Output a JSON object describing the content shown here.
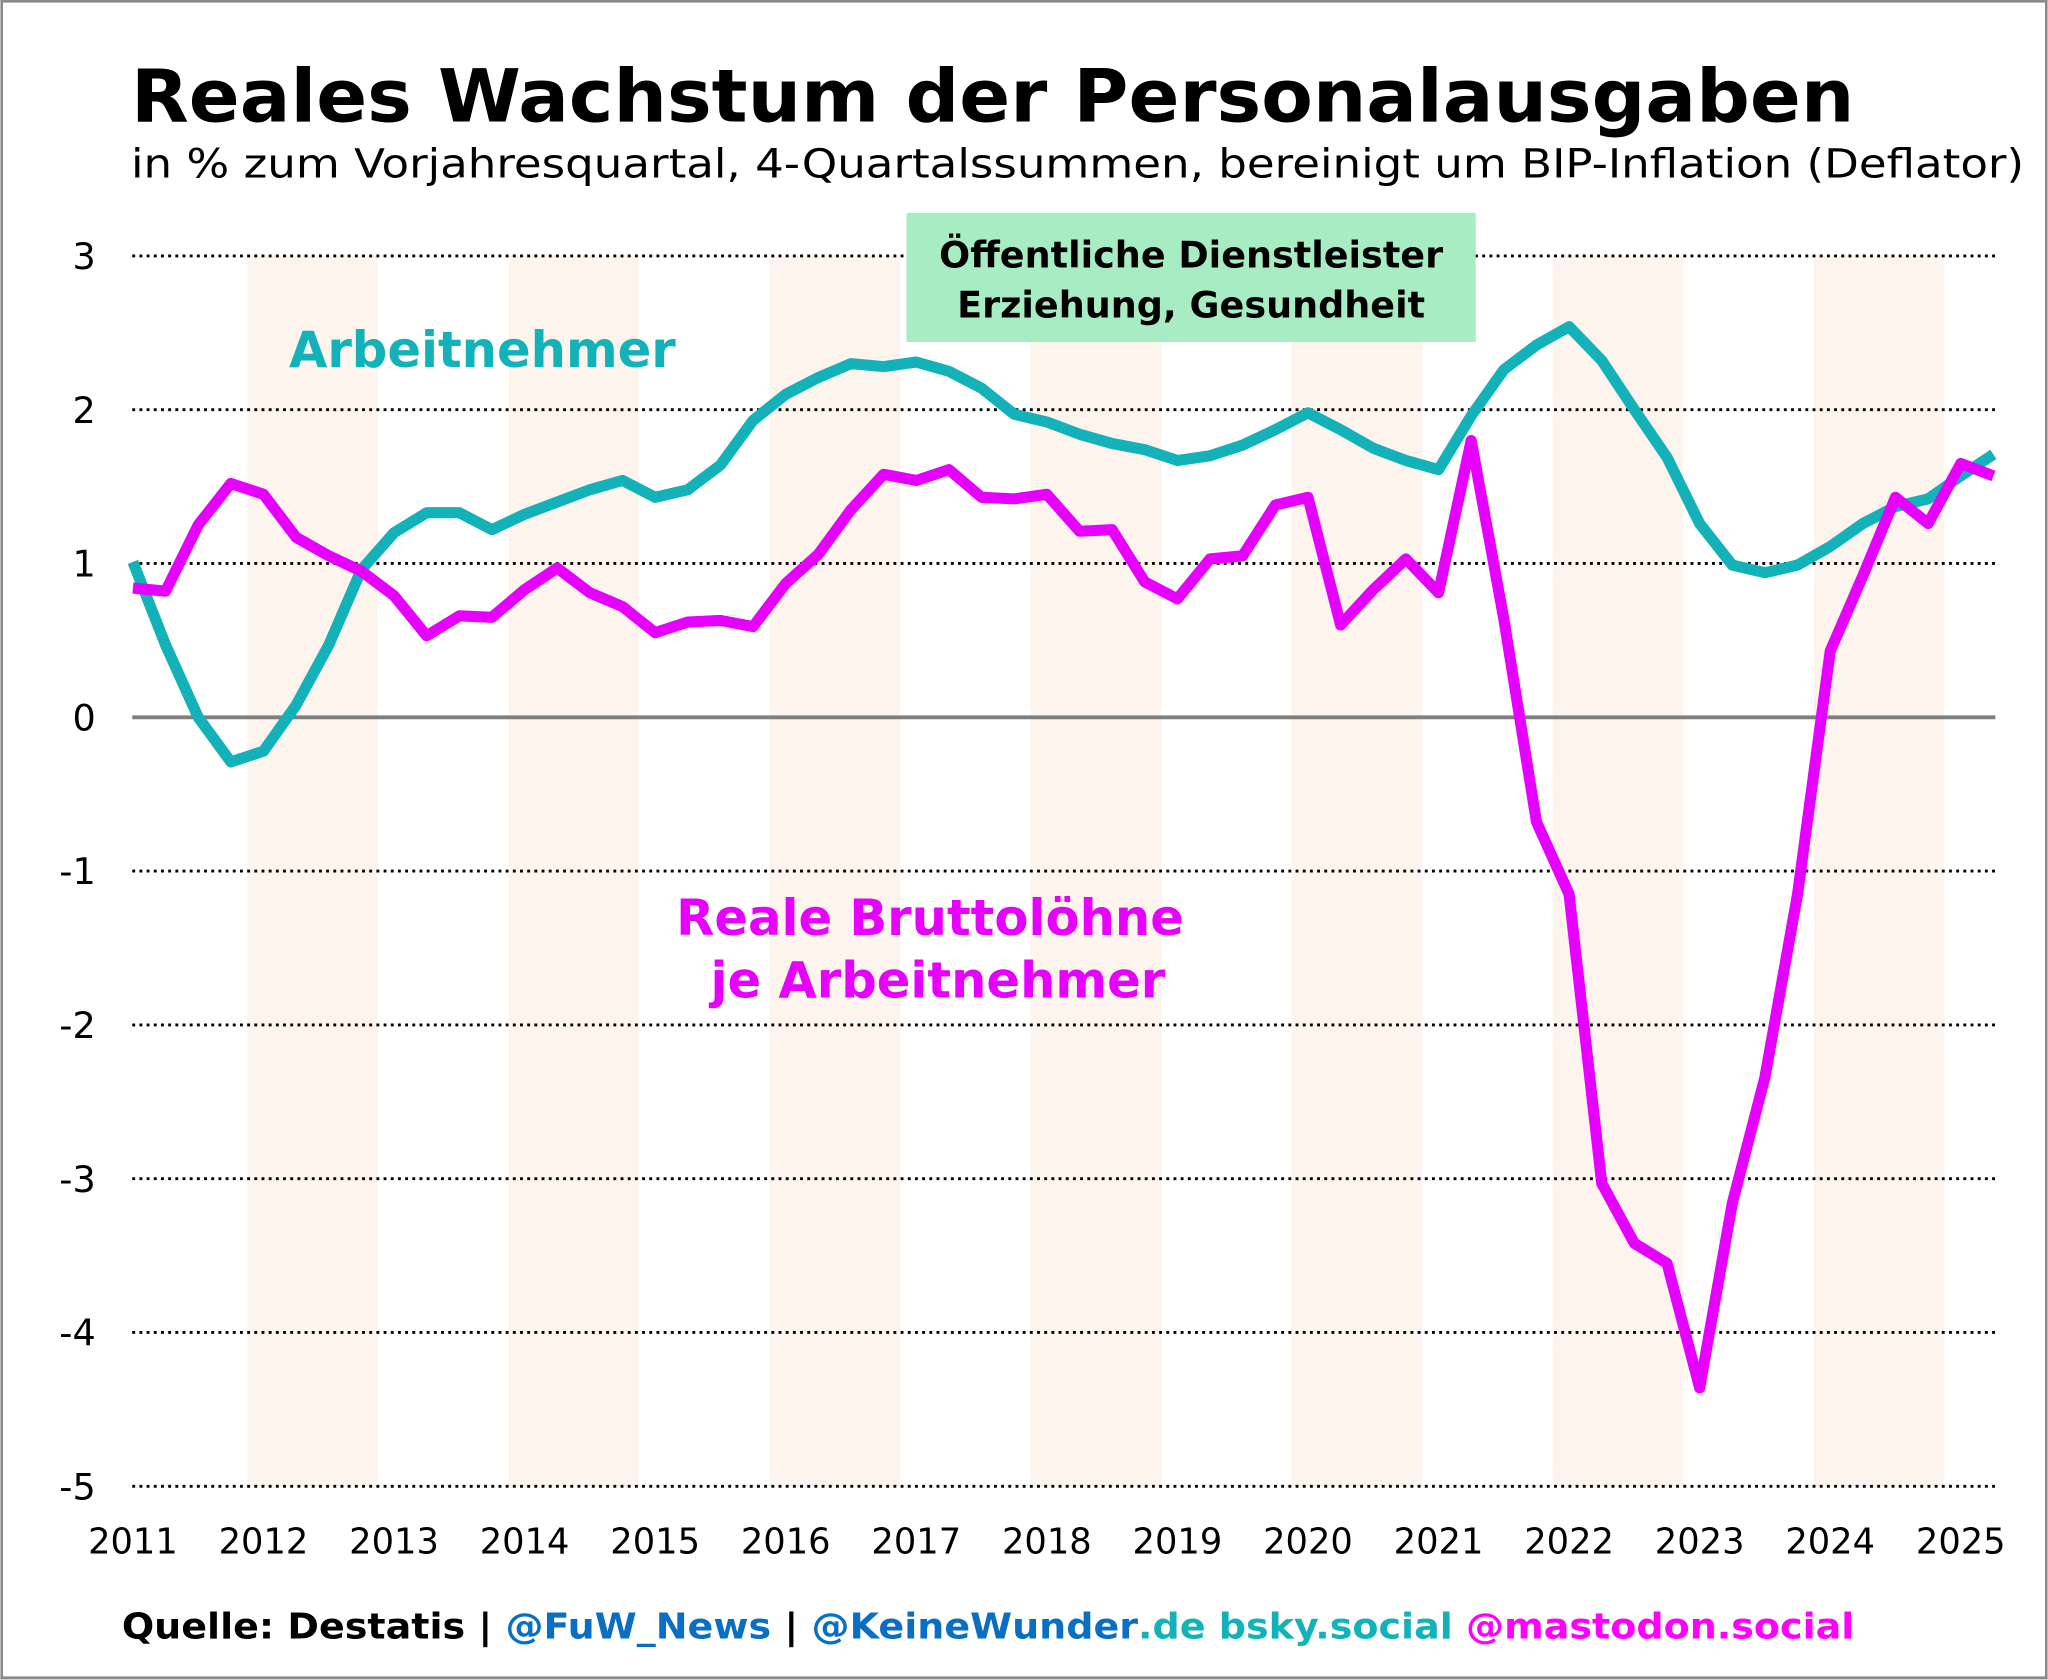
{
  "title": "Reales Wachstum der Personalausgaben",
  "subtitle": "in % zum Vorjahresquartal, 4-Quartalssummen, bereinigt um BIP-Inflation (Deflator)",
  "annotation_box": {
    "line1": "Öffentliche Dienstleister",
    "line2": "Erziehung, Gesundheit",
    "color": "#a8ecc4"
  },
  "footer": {
    "source": "Quelle: Destatis | ",
    "fuw": "@FuW_News",
    "sep": " | ",
    "keinewunder": "@KeineWunder",
    "bsky": ".de bsky.social",
    "mastodon": " @mastodon.social",
    "colors": {
      "black": "#000000",
      "blue": "#0a6fc2",
      "teal": "#12b2b8",
      "magenta": "#ff00ff"
    }
  },
  "chart_data": {
    "type": "line",
    "ylim": [
      -5,
      3
    ],
    "xlim": [
      2011,
      2025.25
    ],
    "y_ticks": [
      "3",
      "2",
      "1",
      "0",
      "-1",
      "-2",
      "-3",
      "-4",
      "-5"
    ],
    "x_ticks": [
      "2011",
      "2012",
      "2013",
      "2014",
      "2015",
      "2016",
      "2017",
      "2018",
      "2019",
      "2020",
      "2021",
      "2022",
      "2023",
      "2024",
      "2025"
    ],
    "grid": "horizontal dotted",
    "shaded_years": [
      2012,
      2014,
      2016,
      2018,
      2020,
      2022,
      2024
    ],
    "shade_color": "#fdf4ee",
    "x": [
      2011,
      2011.25,
      2011.5,
      2011.75,
      2012,
      2012.25,
      2012.5,
      2012.75,
      2013,
      2013.25,
      2013.5,
      2013.75,
      2014,
      2014.25,
      2014.5,
      2014.75,
      2015,
      2015.25,
      2015.5,
      2015.75,
      2016,
      2016.25,
      2016.5,
      2016.75,
      2017,
      2017.25,
      2017.5,
      2017.75,
      2018,
      2018.25,
      2018.5,
      2018.75,
      2019,
      2019.25,
      2019.5,
      2019.75,
      2020,
      2020.25,
      2020.5,
      2020.75,
      2021,
      2021.25,
      2021.5,
      2021.75,
      2022,
      2022.25,
      2022.5,
      2022.75,
      2023,
      2023.25,
      2023.5,
      2023.75,
      2024,
      2024.25,
      2024.5,
      2024.75,
      2025,
      2025.25
    ],
    "series": [
      {
        "name": "Arbeitnehmer",
        "color": "#12b2b8",
        "values": [
          1.01,
          0.47,
          0.0,
          -0.29,
          -0.22,
          0.08,
          0.47,
          0.96,
          1.2,
          1.33,
          1.33,
          1.22,
          1.32,
          1.4,
          1.48,
          1.54,
          1.43,
          1.48,
          1.64,
          1.93,
          2.1,
          2.21,
          2.3,
          2.28,
          2.31,
          2.25,
          2.14,
          1.97,
          1.92,
          1.84,
          1.78,
          1.74,
          1.67,
          1.7,
          1.77,
          1.87,
          1.98,
          1.87,
          1.75,
          1.67,
          1.61,
          1.96,
          2.26,
          2.42,
          2.54,
          2.32,
          2.0,
          1.69,
          1.26,
          0.99,
          0.94,
          0.99,
          1.11,
          1.26,
          1.37,
          1.42,
          1.57,
          1.71
        ]
      },
      {
        "name": "Reale Bruttolöhne je Arbeitnehmer",
        "name_line1": "Reale Bruttolöhne",
        "name_line2": "je Arbeitnehmer",
        "color": "#e600ff",
        "values": [
          0.84,
          0.82,
          1.25,
          1.52,
          1.45,
          1.17,
          1.05,
          0.95,
          0.79,
          0.53,
          0.66,
          0.65,
          0.83,
          0.97,
          0.81,
          0.72,
          0.55,
          0.62,
          0.63,
          0.59,
          0.87,
          1.06,
          1.35,
          1.58,
          1.54,
          1.61,
          1.43,
          1.42,
          1.45,
          1.21,
          1.22,
          0.88,
          0.77,
          1.03,
          1.05,
          1.38,
          1.43,
          0.6,
          0.83,
          1.03,
          0.81,
          1.8,
          0.64,
          -0.68,
          -1.15,
          -3.03,
          -3.42,
          -3.55,
          -4.36,
          -3.16,
          -2.34,
          -1.15,
          0.43,
          0.92,
          1.43,
          1.26,
          1.65,
          1.57
        ]
      }
    ]
  }
}
